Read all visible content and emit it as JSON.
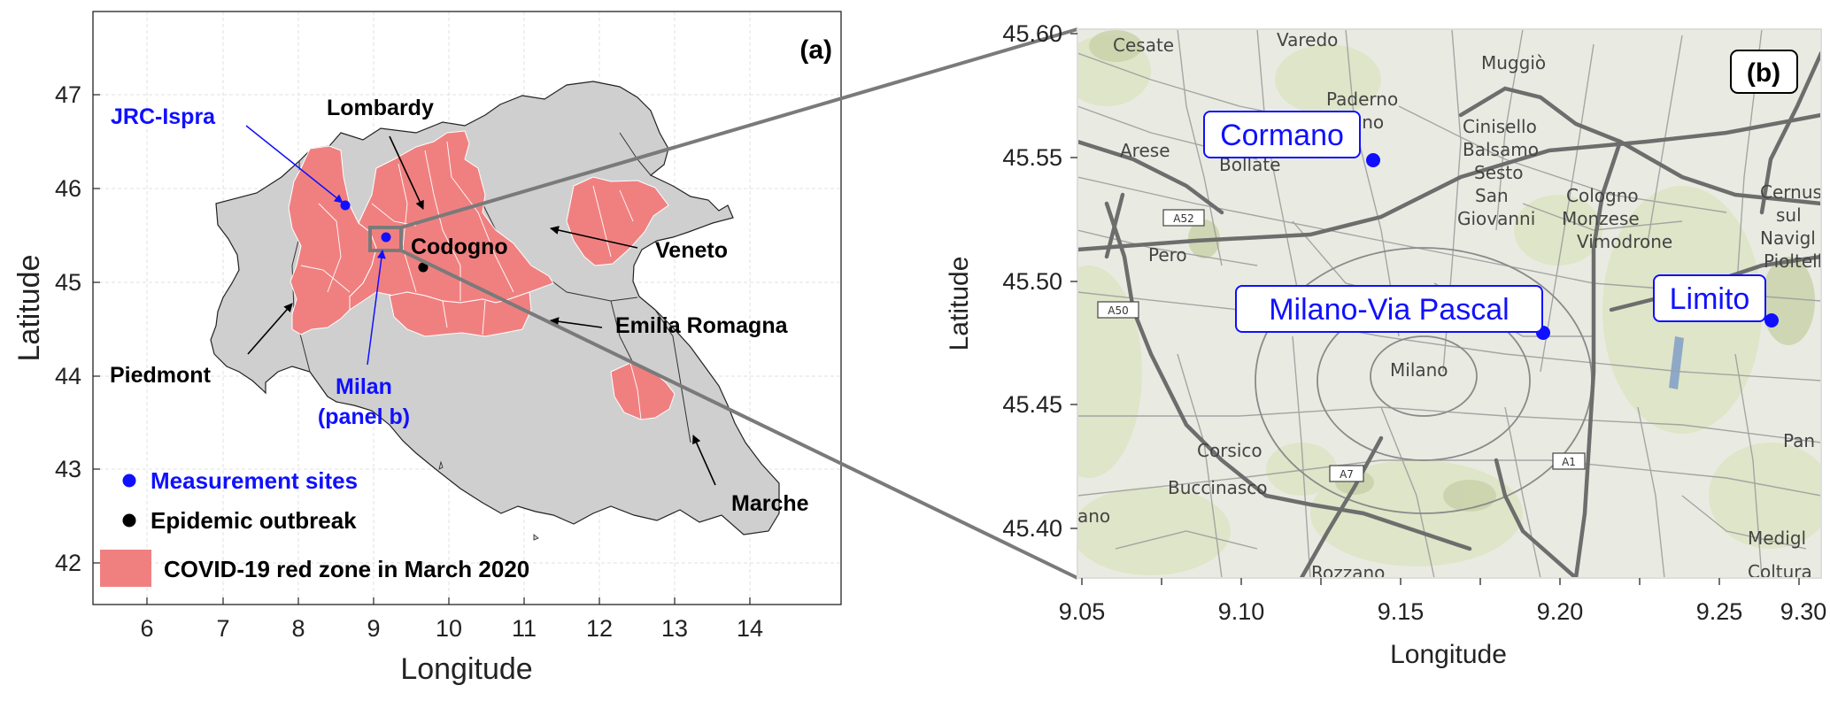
{
  "colors": {
    "region_fill": "#cfcfcf",
    "red_zone": "#f08080",
    "site": "#1010ff",
    "outbreak": "#000000",
    "map_bg": "#e9ebe2",
    "road": "#6d6d6d"
  },
  "panel_a": {
    "tag": "(a)",
    "xlabel": "Longitude",
    "ylabel": "Latitude",
    "xticks": [
      "6",
      "7",
      "8",
      "9",
      "10",
      "11",
      "12",
      "13",
      "14"
    ],
    "yticks": [
      "42",
      "43",
      "44",
      "45",
      "46",
      "47"
    ],
    "region_labels": {
      "lombardy": "Lombardy",
      "veneto": "Veneto",
      "emilia": "Emilia Romagna",
      "piedmont": "Piedmont",
      "marche": "Marche",
      "codogno": "Codogno"
    },
    "site_labels": {
      "jrc": "JRC-Ispra",
      "milan_1": "Milan",
      "milan_2": "(panel b)"
    },
    "legend": {
      "sites": "Measurement sites",
      "outbreak": "Epidemic outbreak",
      "red_zone": "COVID-19 red zone in March 2020"
    }
  },
  "panel_b": {
    "tag": "(b)",
    "xlabel": "Longitude",
    "ylabel": "Latitude",
    "xticks": [
      "9.05",
      "9.10",
      "9.15",
      "9.20",
      "9.25",
      "9.30"
    ],
    "yticks": [
      "45.60",
      "45.55",
      "45.50",
      "45.45",
      "45.40"
    ],
    "sites": {
      "cormano": "Cormano",
      "pascal": "Milano-Via Pascal",
      "limito": "Limito"
    },
    "towns": {
      "cesate": "Cesate",
      "varedo": "Varedo",
      "muggio": "Muggiò",
      "paderno_1": "Paderno",
      "paderno_2": "ano",
      "cinisello_1": "Cinisello",
      "cinisello_2": "Balsamo",
      "arese": "Arese",
      "bollate": "Bollate",
      "sesto_1": "Sesto",
      "sesto_2": "San",
      "sesto_3": "Giovanni",
      "cologno_1": "Cologno",
      "cologno_2": "Monzese",
      "vimodrone": "Vimodrone",
      "cernusco_1": "Cernus",
      "cernusco_2": "sul",
      "cernusco_3": "Navigl",
      "pioltello": "Pioltell",
      "pero": "Pero",
      "milano": "Milano",
      "corsico": "Corsico",
      "buccinasco": "Buccinasco",
      "rozzano": "Rozzano",
      "pan": "Pan",
      "mediglia": "Medigl",
      "coltura": "Coltura",
      "ano": "ano"
    },
    "road_shields": [
      "A52",
      "A50",
      "A7",
      "A1"
    ]
  }
}
